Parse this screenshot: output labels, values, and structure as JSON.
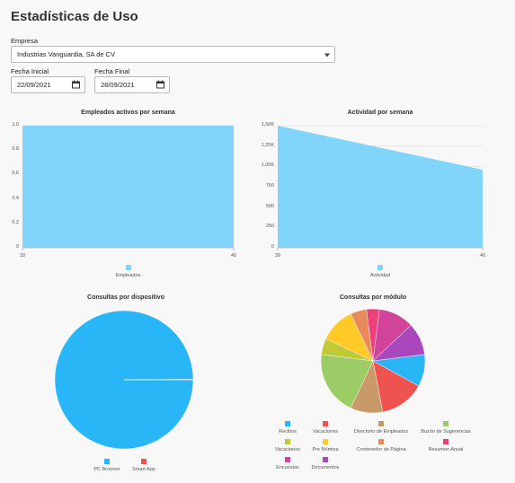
{
  "page": {
    "title": "Estadísticas de Uso"
  },
  "filters": {
    "company_label": "Empresa",
    "company_value": "Industrias Vanguardia, SA de CV",
    "start_label": "Fecha Inicial",
    "start_value": "22/09/2021",
    "end_label": "Fecha Final",
    "end_value": "28/09/2021"
  },
  "icons": {
    "dropdown": "caret-down-icon",
    "calendar": "calendar-icon"
  },
  "chart_data": [
    {
      "type": "area",
      "title": "Empleados activos por semana",
      "x": [
        39,
        40
      ],
      "xticks": [
        "39",
        "40"
      ],
      "series": [
        {
          "name": "Empleados",
          "values": [
            1.0,
            1.0
          ],
          "color": "#81d4fa"
        }
      ],
      "ylim": [
        0,
        1.0
      ],
      "yticks": [
        "0",
        "0.2",
        "0.4",
        "0.6",
        "0.8",
        "1.0"
      ],
      "grid": true,
      "legend": "bottom"
    },
    {
      "type": "area",
      "title": "Actividad por semana",
      "x": [
        39,
        40
      ],
      "xticks": [
        "39",
        "40"
      ],
      "series": [
        {
          "name": "Actividad",
          "values": [
            1500,
            960
          ],
          "color": "#81d4fa"
        }
      ],
      "ylim": [
        0,
        1500
      ],
      "yticks": [
        "0",
        "250",
        "500",
        "750",
        "1,00K",
        "1,25K",
        "1,50K"
      ],
      "grid": true,
      "legend": "bottom"
    },
    {
      "type": "pie",
      "title": "Consultas por dispositivo",
      "categories": [
        "PC Browser",
        "Smart App"
      ],
      "values": [
        99.9,
        0.1
      ],
      "colors": [
        "#29b6f6",
        "#ef5350"
      ],
      "legend": "bottom"
    },
    {
      "type": "pie",
      "title": "Consultas por módulo",
      "categories": [
        "Recibos",
        "Vacaciones",
        "Directorio de Empleados",
        "Buzón de Sugerencias",
        "Vacaciones",
        "Pre Nómina",
        "Contenedor de Página",
        "Resumen Anual",
        "Encuestas",
        "Documentos"
      ],
      "values": [
        10,
        14,
        10,
        20,
        5,
        11,
        5,
        4,
        11,
        10
      ],
      "colors": [
        "#29b6f6",
        "#ef5350",
        "#c99a68",
        "#9ccc65",
        "#c0ca33",
        "#ffca28",
        "#e88a5a",
        "#ec407a",
        "#d2449a",
        "#ab47bc"
      ],
      "legend": "bottom"
    }
  ]
}
